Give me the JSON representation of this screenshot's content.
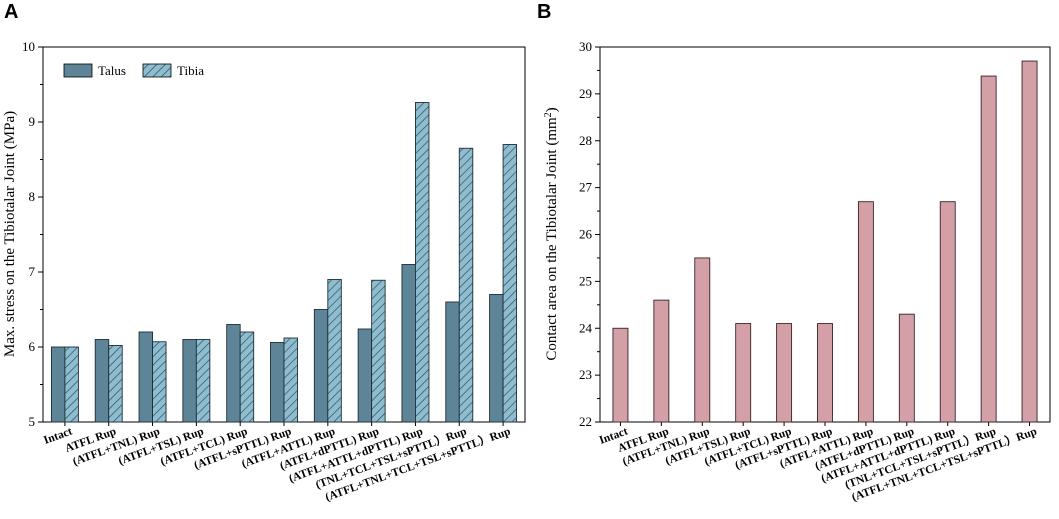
{
  "chart_data": [
    {
      "panel": "A",
      "type": "bar",
      "ylabel": "Max. stress on the Tibiotalar Joint (MPa)",
      "xlabel": "",
      "ylim": [
        5,
        10
      ],
      "yticks": [
        5,
        6,
        7,
        8,
        9,
        10
      ],
      "categories": [
        "Intact",
        "ATFL Rup",
        "(ATFL+TNL) Rup",
        "(ATFL+TSL) Rup",
        "(ATFL+TCL) Rup",
        "(ATFL+sPTTL) Rup",
        "(ATFL+ATTL) Rup",
        "(ATFL+dPTTL) Rup",
        "(ATFL+ATTL+dPTTL) Rup",
        "(TNL+TCL+TSL+sPTTL）Rup",
        "(ATFL+TNL+TCL+TSL+sPTTL）Rup"
      ],
      "series": [
        {
          "name": "Talus",
          "color": "#5d8597",
          "values": [
            6.0,
            6.1,
            6.2,
            6.1,
            6.3,
            6.06,
            6.5,
            6.24,
            7.1,
            6.6,
            6.7
          ]
        },
        {
          "name": "Tibia",
          "color": "#8fbdd0",
          "hatch": true,
          "values": [
            6.0,
            6.02,
            6.07,
            6.1,
            6.2,
            6.12,
            6.9,
            6.89,
            9.26,
            8.65,
            8.7
          ]
        }
      ]
    },
    {
      "panel": "B",
      "type": "bar",
      "ylabel": "Contact area on the Tibiotalar Joint (mm",
      "ylabel_sup": "2",
      "ylabel_close": ")",
      "xlabel": "",
      "ylim": [
        22,
        30
      ],
      "yticks": [
        22,
        23,
        24,
        25,
        26,
        27,
        28,
        29,
        30
      ],
      "categories": [
        "Intact",
        "ATFL Rup",
        "(ATFL+TNL) Rup",
        "(ATFL+TSL) Rup",
        "(ATFL+TCL) Rup",
        "(ATFL+sPTTL) Rup",
        "(ATFL+ATTL) Rup",
        "(ATFL+dPTTL) Rup",
        "(ATFL+ATTL+dPTTL) Rup",
        "(TNL+TCL+TSL+sPTTL）Rup",
        "(ATFL+TNL+TCL+TSL+sPTTL）Rup"
      ],
      "series": [
        {
          "name": "Contact area",
          "color": "#d4a0a8",
          "values": [
            24.0,
            24.6,
            25.5,
            24.1,
            24.1,
            24.1,
            26.7,
            24.3,
            26.7,
            29.38,
            29.7
          ]
        }
      ]
    }
  ]
}
